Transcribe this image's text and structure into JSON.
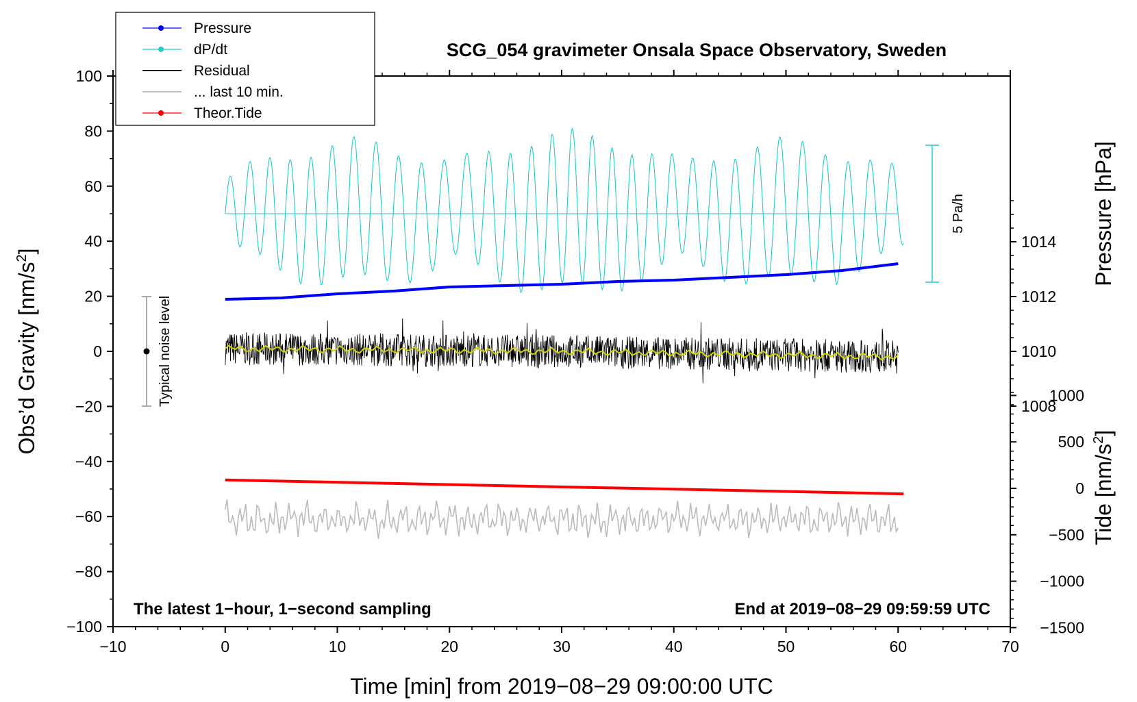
{
  "chart_data": {
    "type": "line",
    "title": "SCG_054 gravimeter Onsala Space Observatory, Sweden",
    "xlabel": "Time [min] from 2019−08−29 09:00:00 UTC",
    "ylabel_left": "Obs’d Gravity [nm/s",
    "ylabel_left_sup": "2",
    "ylabel_left_end": "]",
    "ylabel_right_pressure": "Pressure [hPa]",
    "ylabel_right_tide": "Tide [nm/s",
    "ylabel_right_tide_sup": "2",
    "ylabel_right_tide_end": "]",
    "xlim": [
      -10,
      70
    ],
    "ylim": [
      -100,
      100
    ],
    "x_ticks": [
      "−10",
      "0",
      "10",
      "20",
      "30",
      "40",
      "50",
      "60",
      "70"
    ],
    "y_ticks": [
      "100",
      "80",
      "60",
      "40",
      "20",
      "0",
      "−20",
      "−40",
      "−60",
      "−80",
      "−100"
    ],
    "pressure_ticks": [
      "1014",
      "1012",
      "1010",
      "1008"
    ],
    "tide_ticks": [
      "1000",
      "500",
      "0",
      "−500",
      "−1000",
      "−1500"
    ],
    "note_left": "The latest 1−hour, 1−second sampling",
    "note_right": "End at 2019−08−29 09:59:59 UTC",
    "noise_label": "Typical noise level",
    "rate_label": "5 Pa/h",
    "legend": [
      {
        "label": "Pressure",
        "color": "#0000ff",
        "marker": true
      },
      {
        "label": "dP/dt",
        "color": "#22cccc",
        "marker": true
      },
      {
        "label": "Residual",
        "color": "#000000",
        "marker": false
      },
      {
        "label": "... last 10 min.",
        "color": "#bbbbbb",
        "marker": false
      },
      {
        "label": "Theor.Tide",
        "color": "#ff0000",
        "marker": true
      }
    ],
    "series": {
      "pressure_hpa": {
        "x": [
          0,
          5,
          10,
          15,
          20,
          25,
          30,
          35,
          40,
          45,
          50,
          55,
          60
        ],
        "y": [
          1011.9,
          1011.95,
          1012.1,
          1012.2,
          1012.35,
          1012.4,
          1012.45,
          1012.55,
          1012.6,
          1012.7,
          1012.8,
          1012.95,
          1013.2
        ]
      },
      "tide_nms2": {
        "x": [
          0,
          60
        ],
        "y": [
          90,
          -60
        ]
      },
      "residual_trend": {
        "x": [
          0,
          15,
          30,
          45,
          60
        ],
        "y": [
          1,
          0.5,
          0,
          -1,
          -2
        ]
      },
      "dpdt_baseline": 50
    }
  }
}
